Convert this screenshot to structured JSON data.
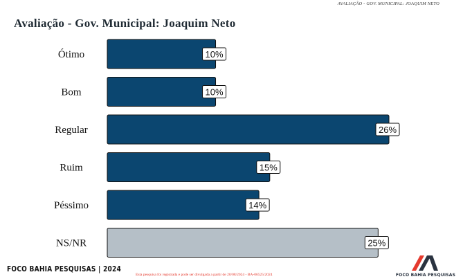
{
  "header": {
    "subtitle": "AVALIAÇÃO - GOV. MUNICIPAL: JOAQUIM NETO"
  },
  "chart_data": {
    "type": "bar",
    "orientation": "horizontal",
    "title": "Avaliação - Gov. Municipal: Joaquim Neto",
    "categories": [
      "Ótimo",
      "Bom",
      "Regular",
      "Ruim",
      "Péssimo",
      "NS/NR"
    ],
    "values": [
      10,
      10,
      26,
      15,
      14,
      25
    ],
    "value_labels": [
      "10%",
      "10%",
      "26%",
      "15%",
      "14%",
      "25%"
    ],
    "bar_colors": [
      "#0b4670",
      "#0b4670",
      "#0b4670",
      "#0b4670",
      "#0b4670",
      "#b5bfc7"
    ],
    "xlim": [
      0,
      26
    ],
    "grid": false,
    "legend": "none"
  },
  "footer": {
    "brand": "FOCO BAHIA PESQUISAS | 2024",
    "note": "Esta pesquisa foi registrada e pode ser divulgada a partir de 20/08/2024 - BA-06525/2024",
    "logo_text": "FOCO BAHIA PESQUISAS",
    "logo_colors": {
      "red": "#e53a2e",
      "dark": "#2a3340"
    }
  }
}
